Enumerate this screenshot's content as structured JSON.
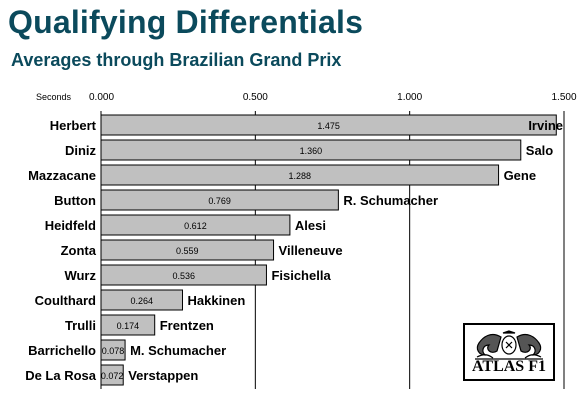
{
  "title": "Qualifying Differentials",
  "subtitle": "Averages through Brazilian Grand Prix",
  "logo": {
    "text": "ATLAS F1",
    "icon": "crest-icon"
  },
  "colors": {
    "title": "#0b4a5c",
    "bar_fill": "#c0c0c0",
    "bar_stroke": "#000000",
    "grid": "#000000"
  },
  "chart_data": {
    "type": "bar",
    "orientation": "horizontal",
    "title": "Qualifying Differentials",
    "subtitle": "Averages through Brazilian Grand Prix",
    "xlabel": "Seconds",
    "xlim": [
      0,
      1.5
    ],
    "xticks": [
      0,
      0.5,
      1.0,
      1.5
    ],
    "xtick_labels": [
      "0.000",
      "0.500",
      "1.000",
      "1.500"
    ],
    "grid": true,
    "categories": [
      "Herbert",
      "Diniz",
      "Mazzacane",
      "Button",
      "Heidfeld",
      "Zonta",
      "Wurz",
      "Coulthard",
      "Trulli",
      "Barrichello",
      "De La Rosa"
    ],
    "teammates": [
      "Irvine",
      "Salo",
      "Gene",
      "R. Schumacher",
      "Alesi",
      "Villeneuve",
      "Fisichella",
      "Hakkinen",
      "Frentzen",
      "M. Schumacher",
      "Verstappen"
    ],
    "values": [
      1.475,
      1.36,
      1.288,
      0.769,
      0.612,
      0.559,
      0.536,
      0.264,
      0.174,
      0.078,
      0.072
    ],
    "value_labels": [
      "1.475",
      "1.360",
      "1.288",
      "0.769",
      "0.612",
      "0.559",
      "0.536",
      "0.264",
      "0.174",
      "0.078",
      "0.072"
    ]
  }
}
